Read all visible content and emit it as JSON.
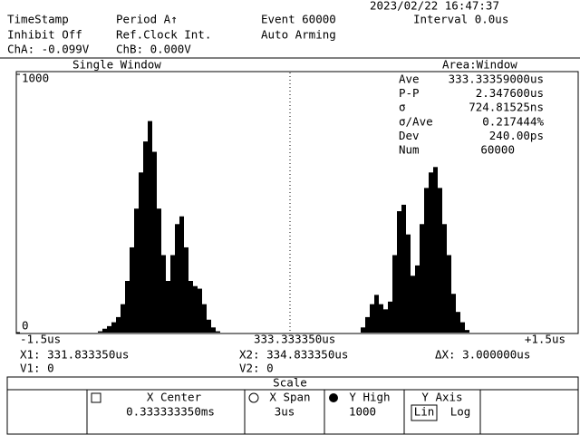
{
  "header": {
    "timestamp": "TimeStamp",
    "inhibit": "Inhibit Off",
    "cha": "ChA: -0.099V",
    "period": "Period A↑",
    "refclock": "Ref.Clock Int.",
    "chb": "ChB: 0.000V",
    "event": "Event 60000",
    "arming": "Auto Arming",
    "datetime": "2023/02/22 16:47:37",
    "interval": "Interval 0.0us"
  },
  "window": {
    "left": "Single Window",
    "right": "Area:Window"
  },
  "histogram": {
    "ylim": [
      0,
      1000
    ],
    "yticks": [
      0,
      1000
    ],
    "x_left": "-1.5us",
    "x_center": "333.333350us",
    "x_right": "+1.5us",
    "values": [
      0,
      0,
      0,
      0,
      0,
      0,
      0,
      0,
      0,
      0,
      0,
      0,
      0,
      0,
      0,
      0,
      0,
      0,
      5,
      15,
      25,
      40,
      60,
      110,
      200,
      330,
      480,
      620,
      740,
      819,
      700,
      480,
      300,
      200,
      300,
      420,
      450,
      330,
      200,
      180,
      170,
      110,
      50,
      20,
      5,
      0,
      0,
      0,
      0,
      0,
      0,
      0,
      0,
      0,
      0,
      0,
      0,
      0,
      0,
      0,
      0,
      0,
      0,
      0,
      0,
      0,
      0,
      0,
      0,
      0,
      0,
      0,
      0,
      0,
      0,
      0,
      20,
      60,
      110,
      146,
      110,
      90,
      120,
      300,
      470,
      495,
      380,
      220,
      260,
      420,
      560,
      620,
      641,
      560,
      420,
      300,
      150,
      80,
      40,
      10,
      0,
      0,
      0,
      0,
      0,
      0,
      0,
      0,
      0,
      0,
      0,
      0,
      0,
      0,
      0,
      0,
      0,
      0,
      0,
      0,
      0,
      0,
      0,
      0
    ]
  },
  "stats": [
    [
      "Ave",
      "333.33359000us"
    ],
    [
      "P-P",
      "2.347600us"
    ],
    [
      "σ",
      "724.81525ns"
    ],
    [
      "σ/Ave",
      "0.217444%"
    ],
    [
      "Dev",
      "240.00ps"
    ],
    [
      "Num",
      "60000"
    ]
  ],
  "cursors": {
    "x1": "X1: 331.833350us",
    "x2": "X2: 334.833350us",
    "dx": "ΔX: 3.000000us",
    "v1": "V1: 0",
    "v2": "V2: 0"
  },
  "menu": {
    "title": "Scale",
    "items": [
      {
        "label": "X Center",
        "value": "0.333333350ms"
      },
      {
        "label": "X Span",
        "value": "3us"
      },
      {
        "label": "Y High",
        "value": "1000"
      },
      {
        "label": "Y Axis",
        "options": [
          "Lin",
          "Log"
        ]
      }
    ]
  }
}
